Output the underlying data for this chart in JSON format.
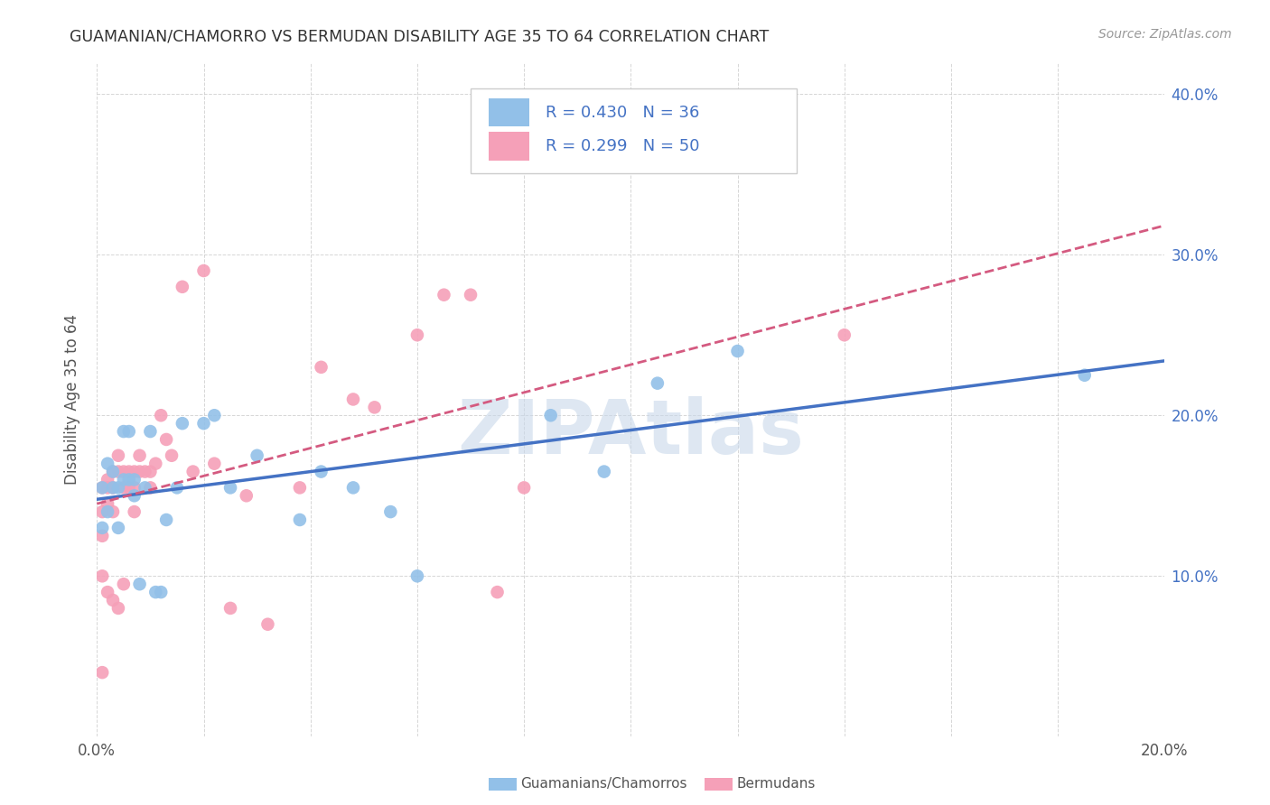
{
  "title": "GUAMANIAN/CHAMORRO VS BERMUDAN DISABILITY AGE 35 TO 64 CORRELATION CHART",
  "source": "Source: ZipAtlas.com",
  "ylabel": "Disability Age 35 to 64",
  "xlim": [
    0.0,
    0.2
  ],
  "ylim": [
    0.0,
    0.42
  ],
  "legend_labels": [
    "Guamanians/Chamorros",
    "Bermudans"
  ],
  "R_guam": 0.43,
  "N_guam": 36,
  "R_berm": 0.299,
  "N_berm": 50,
  "guam_color": "#92c0e8",
  "berm_color": "#f5a0b8",
  "guam_line_color": "#4472c4",
  "berm_line_color": "#d45a80",
  "background_color": "#ffffff",
  "watermark": "ZIPAtlas",
  "watermark_color": "#c8d8ea",
  "guam_x": [
    0.001,
    0.001,
    0.002,
    0.002,
    0.003,
    0.003,
    0.004,
    0.004,
    0.005,
    0.005,
    0.006,
    0.006,
    0.007,
    0.007,
    0.008,
    0.009,
    0.01,
    0.011,
    0.012,
    0.013,
    0.015,
    0.016,
    0.02,
    0.022,
    0.025,
    0.03,
    0.038,
    0.042,
    0.048,
    0.055,
    0.06,
    0.085,
    0.095,
    0.105,
    0.12,
    0.185
  ],
  "guam_y": [
    0.155,
    0.13,
    0.17,
    0.14,
    0.155,
    0.165,
    0.155,
    0.13,
    0.19,
    0.16,
    0.19,
    0.16,
    0.16,
    0.15,
    0.095,
    0.155,
    0.19,
    0.09,
    0.09,
    0.135,
    0.155,
    0.195,
    0.195,
    0.2,
    0.155,
    0.175,
    0.135,
    0.165,
    0.155,
    0.14,
    0.1,
    0.2,
    0.165,
    0.22,
    0.24,
    0.225
  ],
  "berm_x": [
    0.001,
    0.001,
    0.001,
    0.001,
    0.001,
    0.002,
    0.002,
    0.002,
    0.002,
    0.003,
    0.003,
    0.003,
    0.003,
    0.004,
    0.004,
    0.004,
    0.005,
    0.005,
    0.005,
    0.006,
    0.006,
    0.007,
    0.007,
    0.007,
    0.008,
    0.008,
    0.009,
    0.01,
    0.01,
    0.011,
    0.012,
    0.013,
    0.014,
    0.016,
    0.018,
    0.02,
    0.022,
    0.025,
    0.028,
    0.032,
    0.038,
    0.042,
    0.048,
    0.052,
    0.06,
    0.065,
    0.07,
    0.075,
    0.08,
    0.14
  ],
  "berm_y": [
    0.155,
    0.14,
    0.125,
    0.1,
    0.04,
    0.16,
    0.155,
    0.145,
    0.09,
    0.165,
    0.155,
    0.14,
    0.085,
    0.175,
    0.165,
    0.08,
    0.165,
    0.155,
    0.095,
    0.165,
    0.155,
    0.165,
    0.155,
    0.14,
    0.175,
    0.165,
    0.165,
    0.165,
    0.155,
    0.17,
    0.2,
    0.185,
    0.175,
    0.28,
    0.165,
    0.29,
    0.17,
    0.08,
    0.15,
    0.07,
    0.155,
    0.23,
    0.21,
    0.205,
    0.25,
    0.275,
    0.275,
    0.09,
    0.155,
    0.25
  ]
}
